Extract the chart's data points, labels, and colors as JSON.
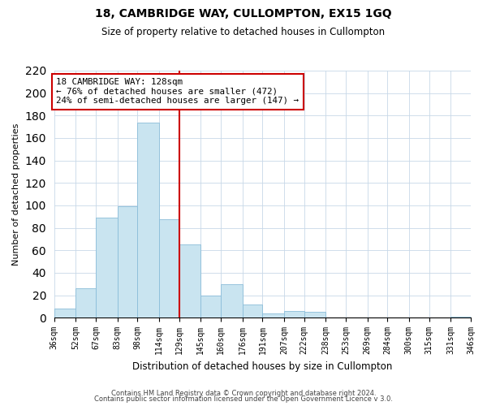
{
  "title": "18, CAMBRIDGE WAY, CULLOMPTON, EX15 1GQ",
  "subtitle": "Size of property relative to detached houses in Cullompton",
  "xlabel": "Distribution of detached houses by size in Cullompton",
  "ylabel": "Number of detached properties",
  "footnote1": "Contains HM Land Registry data © Crown copyright and database right 2024.",
  "footnote2": "Contains public sector information licensed under the Open Government Licence v 3.0.",
  "bar_edges": [
    36,
    52,
    67,
    83,
    98,
    114,
    129,
    145,
    160,
    176,
    191,
    207,
    222,
    238,
    253,
    269,
    284,
    300,
    315,
    331,
    346
  ],
  "bar_heights": [
    8,
    26,
    89,
    99,
    174,
    88,
    65,
    20,
    30,
    12,
    4,
    6,
    5,
    0,
    0,
    0,
    0,
    0,
    0,
    1
  ],
  "bar_color": "#c9e4f0",
  "bar_edgecolor": "#8bbdd9",
  "vline_x": 129,
  "vline_color": "#cc0000",
  "annotation_title": "18 CAMBRIDGE WAY: 128sqm",
  "annotation_line1": "← 76% of detached houses are smaller (472)",
  "annotation_line2": "24% of semi-detached houses are larger (147) →",
  "annotation_box_edgecolor": "#cc0000",
  "ylim": [
    0,
    220
  ],
  "yticks": [
    0,
    20,
    40,
    60,
    80,
    100,
    120,
    140,
    160,
    180,
    200,
    220
  ],
  "xtick_labels": [
    "36sqm",
    "52sqm",
    "67sqm",
    "83sqm",
    "98sqm",
    "114sqm",
    "129sqm",
    "145sqm",
    "160sqm",
    "176sqm",
    "191sqm",
    "207sqm",
    "222sqm",
    "238sqm",
    "253sqm",
    "269sqm",
    "284sqm",
    "300sqm",
    "315sqm",
    "331sqm",
    "346sqm"
  ],
  "figsize": [
    6.0,
    5.0
  ],
  "dpi": 100
}
